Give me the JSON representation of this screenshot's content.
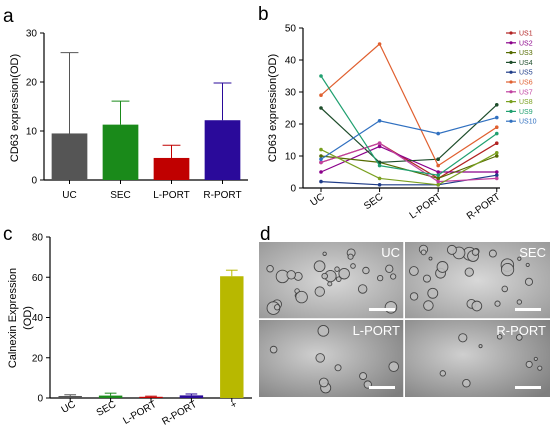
{
  "panels": [
    {
      "panel_label": "a",
      "chart_data": {
        "type": "bar",
        "categories": [
          "UC",
          "SEC",
          "L-PORT",
          "R-PORT"
        ],
        "values": [
          9.5,
          11.3,
          4.5,
          12.2
        ],
        "errors": [
          16.5,
          4.8,
          2.6,
          7.6
        ],
        "colors": [
          "#555555",
          "#1a8a1a",
          "#c00000",
          "#2a0a9a"
        ],
        "ylabel": "CD63 expression(OD)",
        "ylim": [
          0,
          30
        ],
        "yticks": [
          0,
          10,
          20,
          30
        ]
      }
    },
    {
      "panel_label": "b",
      "chart_data": {
        "type": "line",
        "categories": [
          "UC",
          "SEC",
          "L-PORT",
          "R-PORT"
        ],
        "ylabel": "CD63 expression(OD)",
        "ylim": [
          0,
          50
        ],
        "yticks": [
          0,
          10,
          20,
          30,
          40,
          50
        ],
        "legend_position": "right",
        "series": [
          {
            "name": "US1",
            "color": "#b22222",
            "values": [
              8,
              14,
              3,
              14
            ]
          },
          {
            "name": "US2",
            "color": "#8b008b",
            "values": [
              5,
              13,
              5,
              5
            ]
          },
          {
            "name": "US3",
            "color": "#556b00",
            "values": [
              10,
              8,
              3,
              10
            ]
          },
          {
            "name": "US4",
            "color": "#1e4d2b",
            "values": [
              25,
              8,
              9,
              26
            ]
          },
          {
            "name": "US5",
            "color": "#1f3c88",
            "values": [
              2,
              1,
              1,
              4
            ]
          },
          {
            "name": "US6",
            "color": "#e06030",
            "values": [
              29,
              45,
              7,
              19
            ]
          },
          {
            "name": "US7",
            "color": "#c040a0",
            "values": [
              8,
              14,
              2,
              3
            ]
          },
          {
            "name": "US8",
            "color": "#7aa020",
            "values": [
              12,
              3,
              1,
              11
            ]
          },
          {
            "name": "US9",
            "color": "#20a070",
            "values": [
              35,
              7,
              4,
              17
            ]
          },
          {
            "name": "US10",
            "color": "#3070c0",
            "values": [
              9,
              21,
              17,
              22
            ]
          }
        ]
      }
    },
    {
      "panel_label": "c",
      "chart_data": {
        "type": "bar",
        "categories": [
          "UC",
          "SEC",
          "L-PORT",
          "R-PORT",
          "+"
        ],
        "values": [
          1.0,
          1.2,
          0.6,
          1.3,
          60.5
        ],
        "errors": [
          0.6,
          1.2,
          0.3,
          0.7,
          3.0
        ],
        "colors": [
          "#555555",
          "#1a8a1a",
          "#c00000",
          "#2a0a9a",
          "#b8b800"
        ],
        "ylabel": "Calnexin Expression (OD)",
        "ylim": [
          0,
          80
        ],
        "yticks": [
          0,
          20,
          40,
          60,
          80
        ]
      }
    },
    {
      "panel_label": "d",
      "images": [
        {
          "label": "UC"
        },
        {
          "label": "SEC"
        },
        {
          "label": "L-PORT"
        },
        {
          "label": "R-PORT"
        }
      ]
    }
  ]
}
